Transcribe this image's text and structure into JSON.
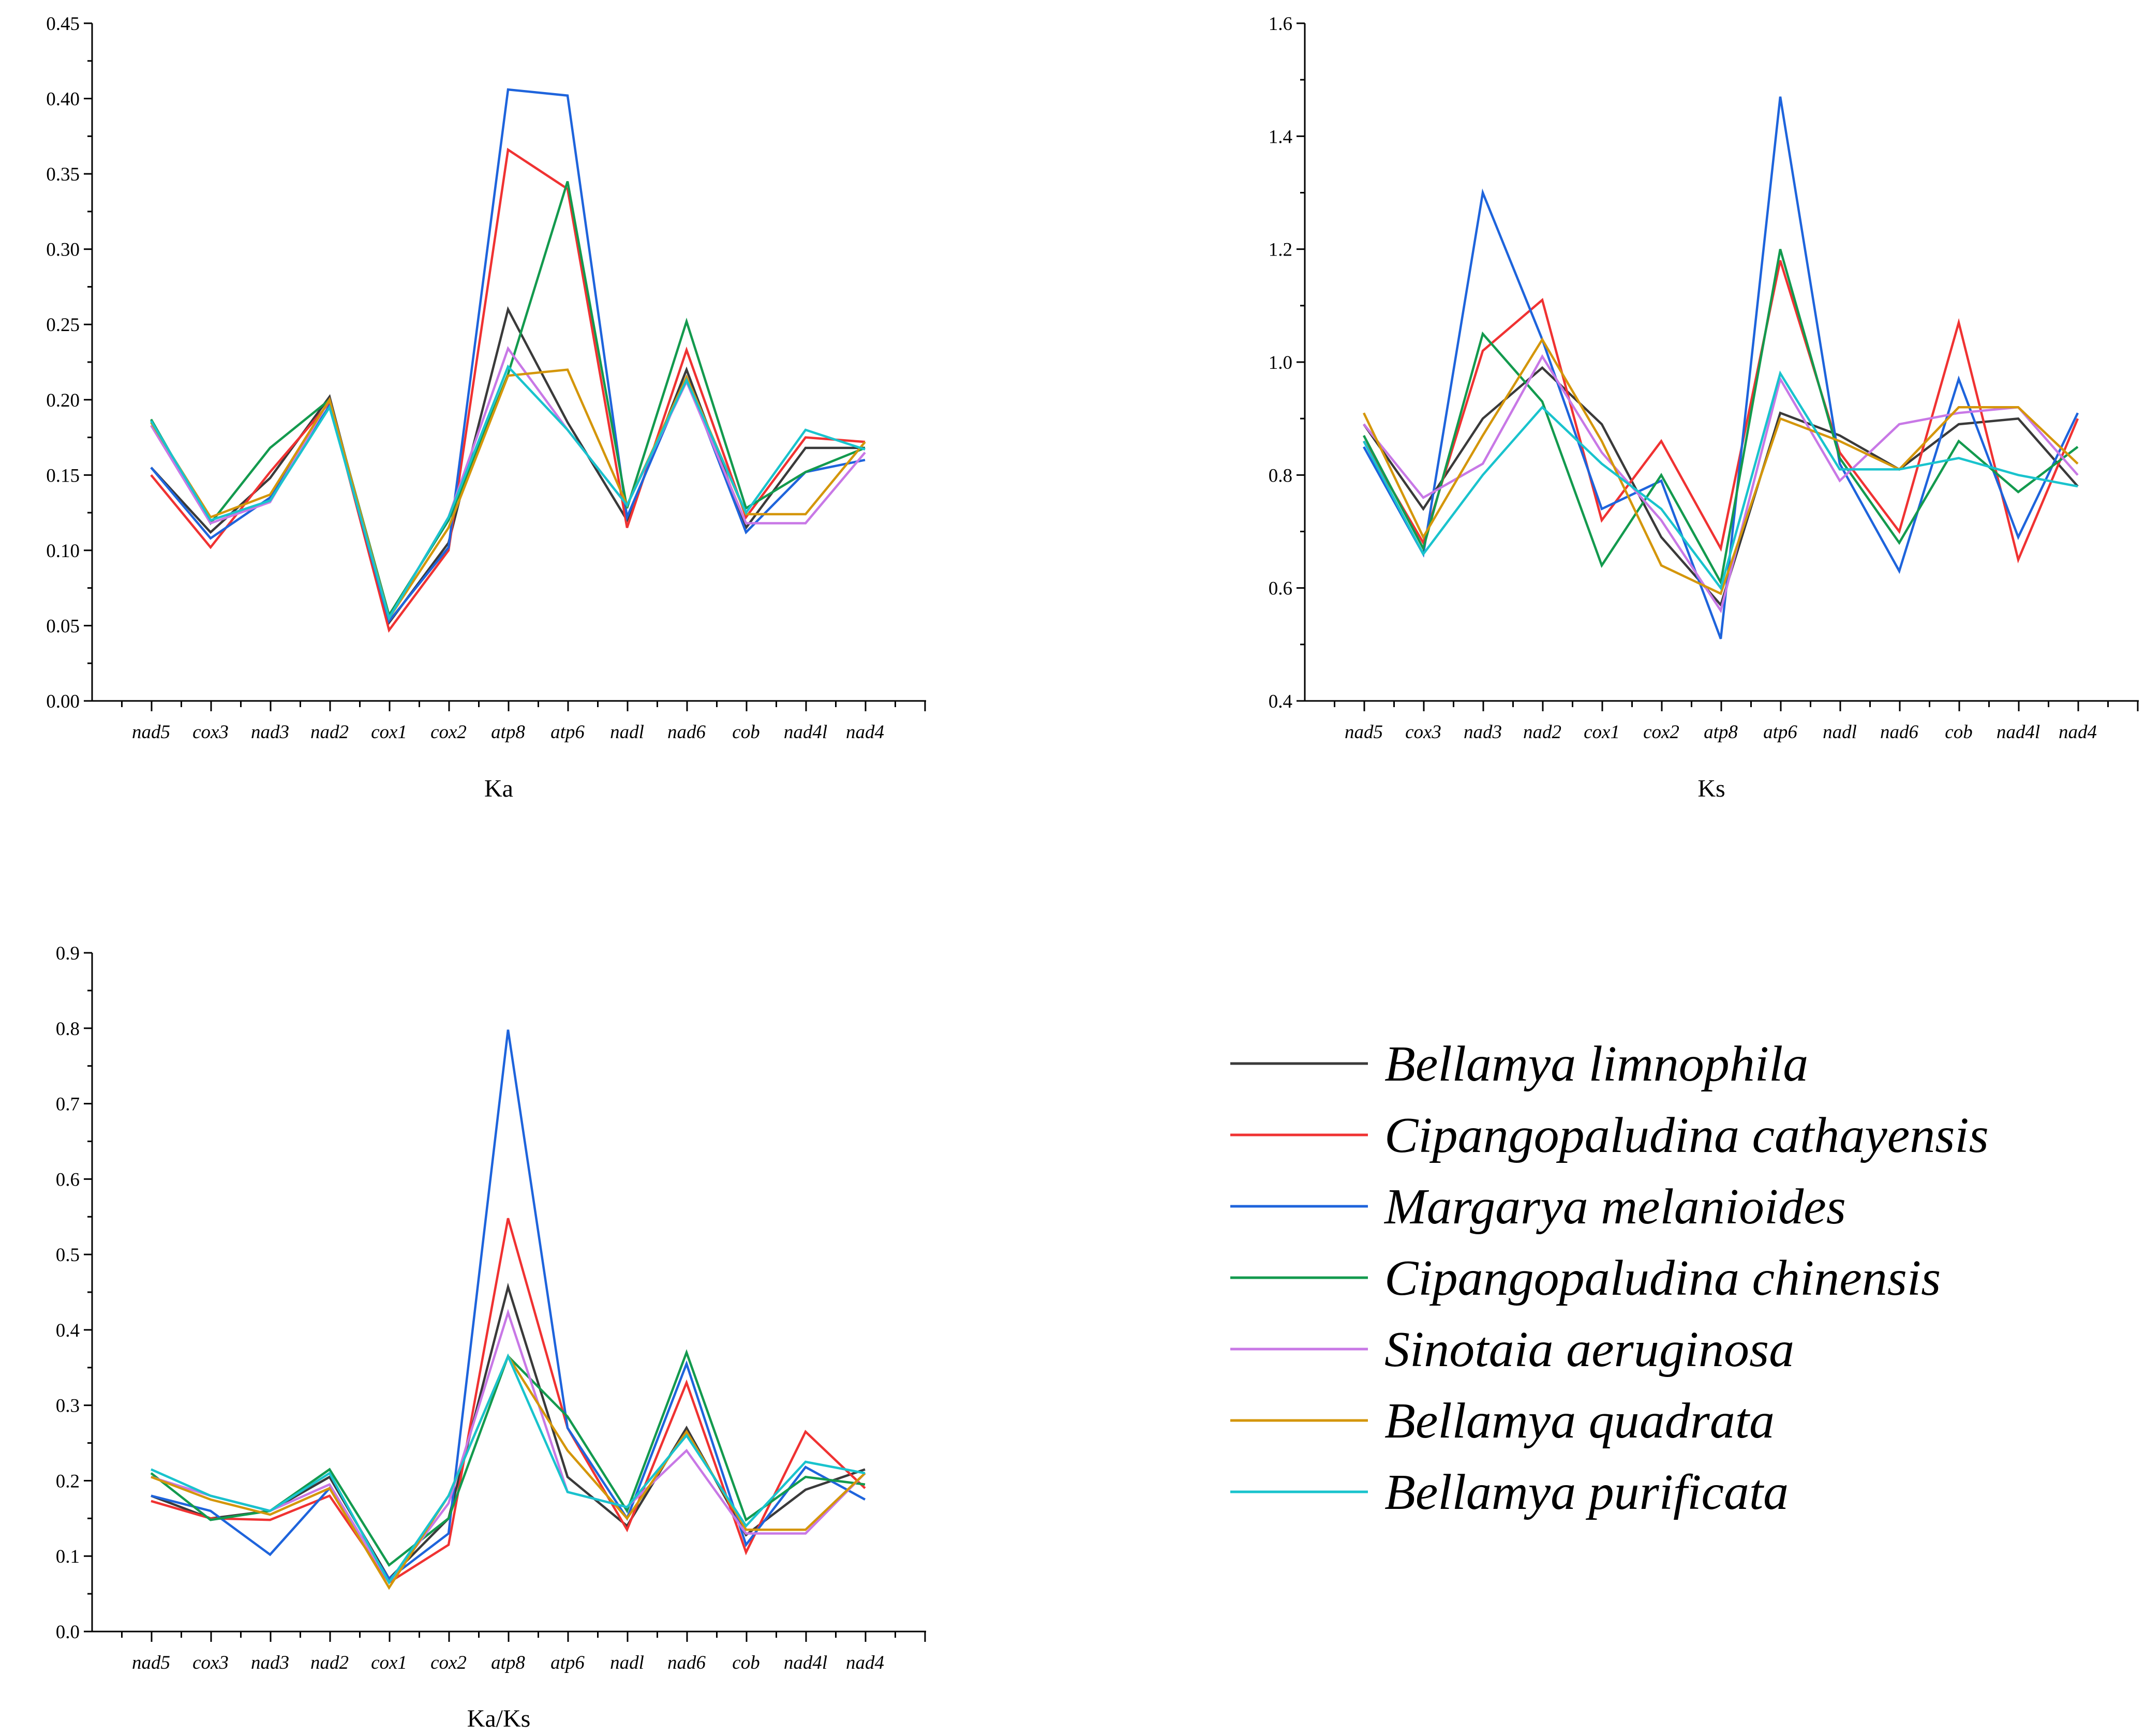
{
  "chart_data": [
    {
      "type": "line",
      "xlabel": "Ka",
      "ylabel": "",
      "ylim": [
        0,
        0.45
      ],
      "yticks": [
        "0.00",
        "0.05",
        "0.10",
        "0.15",
        "0.20",
        "0.25",
        "0.30",
        "0.35",
        "0.40",
        "0.45"
      ],
      "categories": [
        "nad5",
        "cox3",
        "nad3",
        "nad2",
        "cox1",
        "cox2",
        "atp8",
        "atp6",
        "nadl",
        "nad6",
        "cob",
        "nad4l",
        "nad4"
      ],
      "series": [
        {
          "name": "Bellamya limnophila",
          "values": [
            0.155,
            0.112,
            0.148,
            0.202,
            0.052,
            0.105,
            0.26,
            0.185,
            0.12,
            0.22,
            0.115,
            0.168,
            0.168
          ]
        },
        {
          "name": "Cipangopaludina cathayensis",
          "values": [
            0.15,
            0.102,
            0.152,
            0.198,
            0.047,
            0.1,
            0.366,
            0.34,
            0.115,
            0.233,
            0.122,
            0.175,
            0.172
          ]
        },
        {
          "name": "Margarya melanioides",
          "values": [
            0.155,
            0.108,
            0.135,
            0.196,
            0.053,
            0.102,
            0.406,
            0.402,
            0.122,
            0.215,
            0.112,
            0.152,
            0.16
          ]
        },
        {
          "name": "Cipangopaludina chinensis",
          "values": [
            0.187,
            0.118,
            0.168,
            0.2,
            0.057,
            0.12,
            0.217,
            0.345,
            0.128,
            0.252,
            0.128,
            0.152,
            0.168
          ]
        },
        {
          "name": "Sinotaia aeruginosa",
          "values": [
            0.183,
            0.118,
            0.132,
            0.2,
            0.055,
            0.122,
            0.234,
            0.18,
            0.13,
            0.212,
            0.118,
            0.118,
            0.165
          ]
        },
        {
          "name": "Bellamya quadrata",
          "values": [
            0.185,
            0.122,
            0.137,
            0.2,
            0.055,
            0.115,
            0.216,
            0.22,
            0.13,
            0.215,
            0.124,
            0.124,
            0.172
          ]
        },
        {
          "name": "Bellamya purificata",
          "values": [
            0.186,
            0.12,
            0.133,
            0.195,
            0.055,
            0.122,
            0.222,
            0.18,
            0.13,
            0.213,
            0.125,
            0.18,
            0.167
          ]
        }
      ]
    },
    {
      "type": "line",
      "xlabel": "Ks",
      "ylabel": "",
      "ylim": [
        0.4,
        1.6
      ],
      "yticks": [
        "0.4",
        "0.6",
        "0.8",
        "1.0",
        "1.2",
        "1.4",
        "1.6"
      ],
      "categories": [
        "nad5",
        "cox3",
        "nad3",
        "nad2",
        "cox1",
        "cox2",
        "atp8",
        "atp6",
        "nadl",
        "nad6",
        "cob",
        "nad4l",
        "nad4"
      ],
      "series": [
        {
          "name": "Bellamya limnophila",
          "values": [
            0.89,
            0.74,
            0.9,
            0.99,
            0.89,
            0.69,
            0.57,
            0.91,
            0.87,
            0.81,
            0.89,
            0.9,
            0.78
          ]
        },
        {
          "name": "Cipangopaludina cathayensis",
          "values": [
            0.86,
            0.68,
            1.02,
            1.11,
            0.72,
            0.86,
            0.67,
            1.18,
            0.84,
            0.7,
            1.07,
            0.65,
            0.9
          ]
        },
        {
          "name": "Margarya melanioides",
          "values": [
            0.85,
            0.66,
            1.3,
            1.04,
            0.74,
            0.79,
            0.51,
            1.47,
            0.82,
            0.63,
            0.97,
            0.69,
            0.91
          ]
        },
        {
          "name": "Cipangopaludina chinensis",
          "values": [
            0.87,
            0.67,
            1.05,
            0.93,
            0.64,
            0.8,
            0.61,
            1.2,
            0.83,
            0.68,
            0.86,
            0.77,
            0.85
          ]
        },
        {
          "name": "Sinotaia aeruginosa",
          "values": [
            0.89,
            0.76,
            0.82,
            1.01,
            0.84,
            0.72,
            0.56,
            0.97,
            0.79,
            0.89,
            0.91,
            0.92,
            0.8
          ]
        },
        {
          "name": "Bellamya quadrata",
          "values": [
            0.91,
            0.69,
            0.87,
            1.04,
            0.86,
            0.64,
            0.59,
            0.9,
            0.86,
            0.81,
            0.92,
            0.92,
            0.82
          ]
        },
        {
          "name": "Bellamya purificata",
          "values": [
            0.86,
            0.66,
            0.8,
            0.92,
            0.82,
            0.74,
            0.6,
            0.98,
            0.81,
            0.81,
            0.83,
            0.8,
            0.78
          ]
        }
      ]
    },
    {
      "type": "line",
      "xlabel": "Ka/Ks",
      "ylabel": "",
      "ylim": [
        0,
        0.9
      ],
      "yticks": [
        "0.0",
        "0.1",
        "0.2",
        "0.3",
        "0.4",
        "0.5",
        "0.6",
        "0.7",
        "0.8",
        "0.9"
      ],
      "categories": [
        "nad5",
        "cox3",
        "nad3",
        "nad2",
        "cox1",
        "cox2",
        "atp8",
        "atp6",
        "nadl",
        "nad6",
        "cob",
        "nad4l",
        "nad4"
      ],
      "series": [
        {
          "name": "Bellamya limnophila",
          "values": [
            0.18,
            0.15,
            0.16,
            0.205,
            0.07,
            0.15,
            0.457,
            0.205,
            0.14,
            0.27,
            0.128,
            0.188,
            0.215
          ]
        },
        {
          "name": "Cipangopaludina cathayensis",
          "values": [
            0.173,
            0.15,
            0.148,
            0.18,
            0.065,
            0.115,
            0.548,
            0.27,
            0.135,
            0.33,
            0.105,
            0.265,
            0.19
          ]
        },
        {
          "name": "Margarya melanioides",
          "values": [
            0.18,
            0.16,
            0.102,
            0.19,
            0.07,
            0.13,
            0.798,
            0.27,
            0.15,
            0.355,
            0.115,
            0.218,
            0.175
          ]
        },
        {
          "name": "Cipangopaludina chinensis",
          "values": [
            0.21,
            0.148,
            0.16,
            0.215,
            0.088,
            0.15,
            0.365,
            0.285,
            0.16,
            0.37,
            0.148,
            0.205,
            0.195
          ]
        },
        {
          "name": "Sinotaia aeruginosa",
          "values": [
            0.205,
            0.18,
            0.16,
            0.195,
            0.065,
            0.17,
            0.423,
            0.185,
            0.165,
            0.24,
            0.13,
            0.13,
            0.21
          ]
        },
        {
          "name": "Bellamya quadrata",
          "values": [
            0.205,
            0.175,
            0.155,
            0.19,
            0.058,
            0.18,
            0.365,
            0.24,
            0.15,
            0.265,
            0.135,
            0.135,
            0.21
          ]
        },
        {
          "name": "Bellamya purificata",
          "values": [
            0.215,
            0.18,
            0.16,
            0.21,
            0.065,
            0.18,
            0.365,
            0.185,
            0.165,
            0.26,
            0.14,
            0.225,
            0.21
          ]
        }
      ]
    }
  ],
  "legend": {
    "placement": "bottom-right",
    "items": [
      {
        "name": "Bellamya limnophila",
        "color": "#3a3a3a"
      },
      {
        "name": "Cipangopaludina cathayensis",
        "color": "#f03232"
      },
      {
        "name": "Margarya melanioides",
        "color": "#1e64dc"
      },
      {
        "name": "Cipangopaludina chinensis",
        "color": "#139a4e"
      },
      {
        "name": "Sinotaia aeruginosa",
        "color": "#c878e6"
      },
      {
        "name": "Bellamya quadrata",
        "color": "#d4960a"
      },
      {
        "name": "Bellamya purificata",
        "color": "#19c3cd"
      }
    ]
  }
}
